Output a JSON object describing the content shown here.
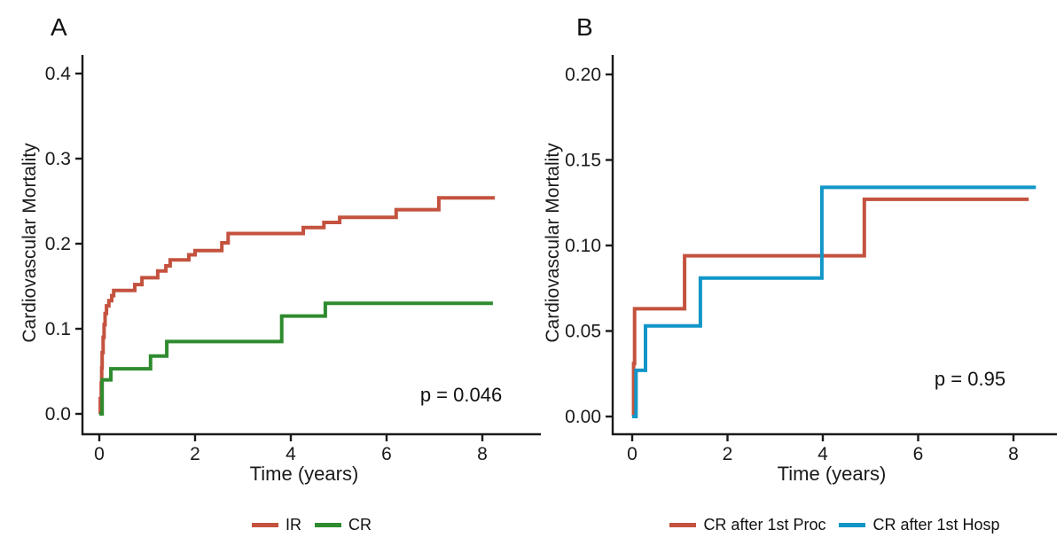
{
  "figure": {
    "background": "#ffffff",
    "axis_color": "#1a1a1a",
    "text_color": "#1a1a1a"
  },
  "chart_data": [
    {
      "tag": "A",
      "type": "line",
      "subtype": "step-after",
      "xlabel": "Time (years)",
      "ylabel": "Cardiovascular Mortality",
      "annotation": "p = 0.046",
      "legend_position": "bottom",
      "grid": false,
      "xlim": [
        0,
        8.5
      ],
      "ylim": [
        0,
        0.42
      ],
      "xticks": [
        {
          "v": 0,
          "label": "0"
        },
        {
          "v": 2,
          "label": "2"
        },
        {
          "v": 4,
          "label": "4"
        },
        {
          "v": 6,
          "label": "6"
        },
        {
          "v": 8,
          "label": "8"
        }
      ],
      "yticks": [
        {
          "v": 0.0,
          "label": "0.0"
        },
        {
          "v": 0.1,
          "label": "0.1"
        },
        {
          "v": 0.2,
          "label": "0.2"
        },
        {
          "v": 0.3,
          "label": "0.3"
        },
        {
          "v": 0.4,
          "label": "0.4"
        }
      ],
      "series": [
        {
          "name": "IR",
          "color": "#C4523E",
          "end": 8.26,
          "points": [
            [
              0,
              0
            ],
            [
              0.02,
              0.018
            ],
            [
              0.04,
              0.036
            ],
            [
              0.05,
              0.054
            ],
            [
              0.06,
              0.072
            ],
            [
              0.08,
              0.09
            ],
            [
              0.1,
              0.105
            ],
            [
              0.12,
              0.118
            ],
            [
              0.15,
              0.127
            ],
            [
              0.2,
              0.133
            ],
            [
              0.26,
              0.139
            ],
            [
              0.3,
              0.145
            ],
            [
              0.74,
              0.152
            ],
            [
              0.89,
              0.16
            ],
            [
              1.22,
              0.168
            ],
            [
              1.39,
              0.174
            ],
            [
              1.48,
              0.181
            ],
            [
              1.87,
              0.187
            ],
            [
              2.0,
              0.192
            ],
            [
              2.56,
              0.201
            ],
            [
              2.69,
              0.212
            ],
            [
              4.26,
              0.219
            ],
            [
              4.69,
              0.225
            ],
            [
              5.02,
              0.231
            ],
            [
              6.2,
              0.24
            ],
            [
              7.09,
              0.254
            ]
          ]
        },
        {
          "name": "CR",
          "color": "#2E8B2E",
          "end": 8.22,
          "points": [
            [
              0,
              0
            ],
            [
              0.06,
              0.04
            ],
            [
              0.24,
              0.053
            ],
            [
              1.07,
              0.068
            ],
            [
              1.41,
              0.085
            ],
            [
              3.81,
              0.115
            ],
            [
              4.72,
              0.13
            ]
          ]
        }
      ]
    },
    {
      "tag": "B",
      "type": "line",
      "subtype": "step-after",
      "xlabel": "Time (years)",
      "ylabel": "Cardiovascular Mortality",
      "annotation": "p = 0.95",
      "legend_position": "bottom",
      "grid": false,
      "xlim": [
        0,
        8.5
      ],
      "ylim": [
        0,
        0.21
      ],
      "xticks": [
        {
          "v": 0,
          "label": "0"
        },
        {
          "v": 2,
          "label": "2"
        },
        {
          "v": 4,
          "label": "4"
        },
        {
          "v": 6,
          "label": "6"
        },
        {
          "v": 8,
          "label": "8"
        }
      ],
      "yticks": [
        {
          "v": 0.0,
          "label": "0.00"
        },
        {
          "v": 0.05,
          "label": "0.05"
        },
        {
          "v": 0.1,
          "label": "0.10"
        },
        {
          "v": 0.15,
          "label": "0.15"
        },
        {
          "v": 0.2,
          "label": "0.20"
        }
      ],
      "series": [
        {
          "name": "CR after 1st Proc",
          "color": "#C4523E",
          "end": 8.32,
          "points": [
            [
              0,
              0
            ],
            [
              0.03,
              0.031
            ],
            [
              0.05,
              0.063
            ],
            [
              1.1,
              0.094
            ],
            [
              4.87,
              0.127
            ]
          ]
        },
        {
          "name": "CR after 1st Hosp",
          "color": "#1296C8",
          "end": 8.47,
          "points": [
            [
              0,
              0
            ],
            [
              0.08,
              0.027
            ],
            [
              0.28,
              0.053
            ],
            [
              1.43,
              0.081
            ],
            [
              3.98,
              0.134
            ]
          ]
        }
      ]
    }
  ]
}
